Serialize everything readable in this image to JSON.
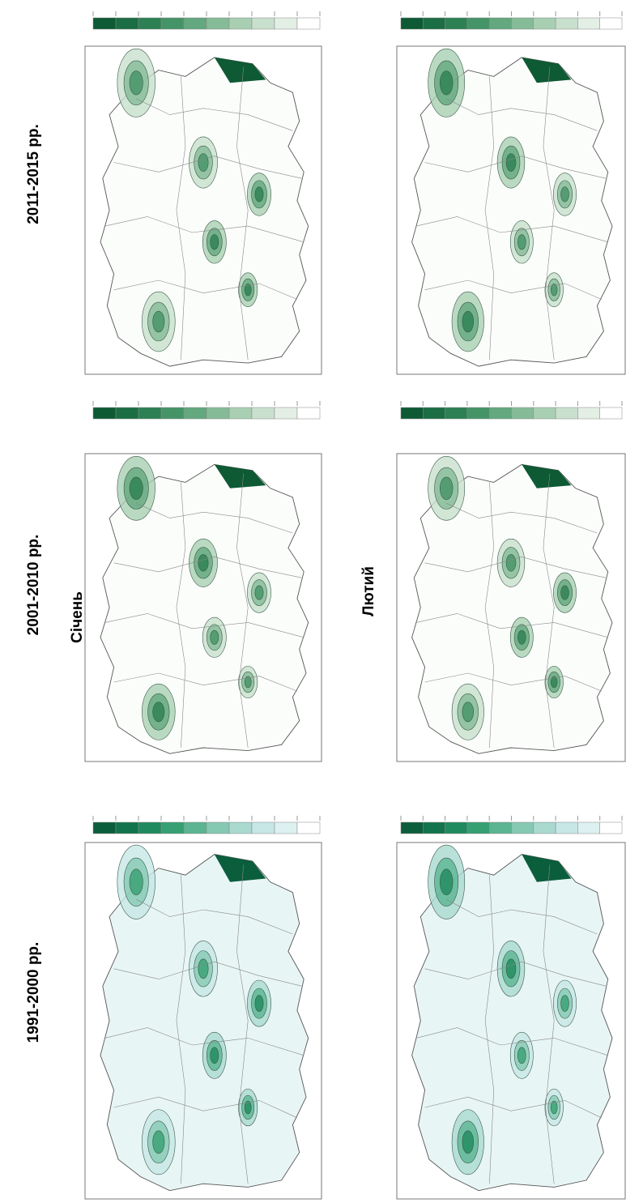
{
  "periods": [
    "1991-2000 рр.",
    "2001-2010 рр.",
    "2011-2015 рр."
  ],
  "months": [
    "Січень",
    "Лютий"
  ]
}
